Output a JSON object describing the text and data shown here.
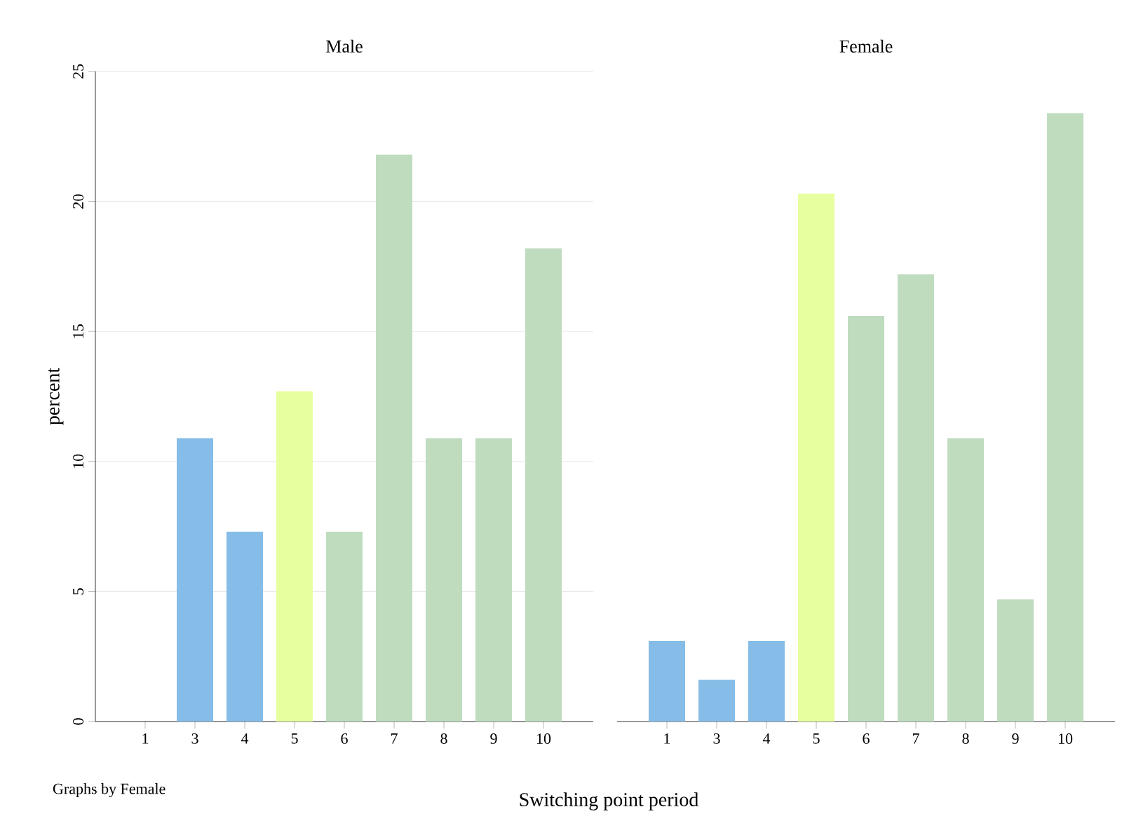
{
  "chart_data": [
    {
      "type": "bar",
      "title": "Male",
      "ylabel": "percent",
      "annotations": [
        "Graphs by Female"
      ],
      "categories": [
        "1",
        "3",
        "4",
        "5",
        "6",
        "7",
        "8",
        "9",
        "10"
      ],
      "values": [
        0,
        10.9,
        7.3,
        12.7,
        7.3,
        21.8,
        10.9,
        10.9,
        18.2
      ],
      "colors": [
        "#85bde8",
        "#85bde8",
        "#85bde8",
        "#e8ffa0",
        "#bfdcbf",
        "#bfdcbf",
        "#bfdcbf",
        "#bfdcbf",
        "#bfdcbf"
      ],
      "ylim": [
        0,
        25
      ],
      "yticks": [
        0,
        5,
        10,
        15,
        20,
        25
      ],
      "grid": "y"
    },
    {
      "type": "bar",
      "title": "Female",
      "xlabel": "Switching point period",
      "categories": [
        "1",
        "3",
        "4",
        "5",
        "6",
        "7",
        "8",
        "9",
        "10"
      ],
      "values": [
        3.1,
        1.6,
        3.1,
        20.3,
        15.6,
        17.2,
        10.9,
        4.7,
        23.4
      ],
      "colors": [
        "#85bde8",
        "#85bde8",
        "#85bde8",
        "#e8ffa0",
        "#bfdcbf",
        "#bfdcbf",
        "#bfdcbf",
        "#bfdcbf",
        "#bfdcbf"
      ],
      "ylim": [
        0,
        25
      ],
      "yticks": [
        0,
        5,
        10,
        15,
        20,
        25
      ],
      "grid": "y",
      "tick_labels": "x"
    }
  ]
}
